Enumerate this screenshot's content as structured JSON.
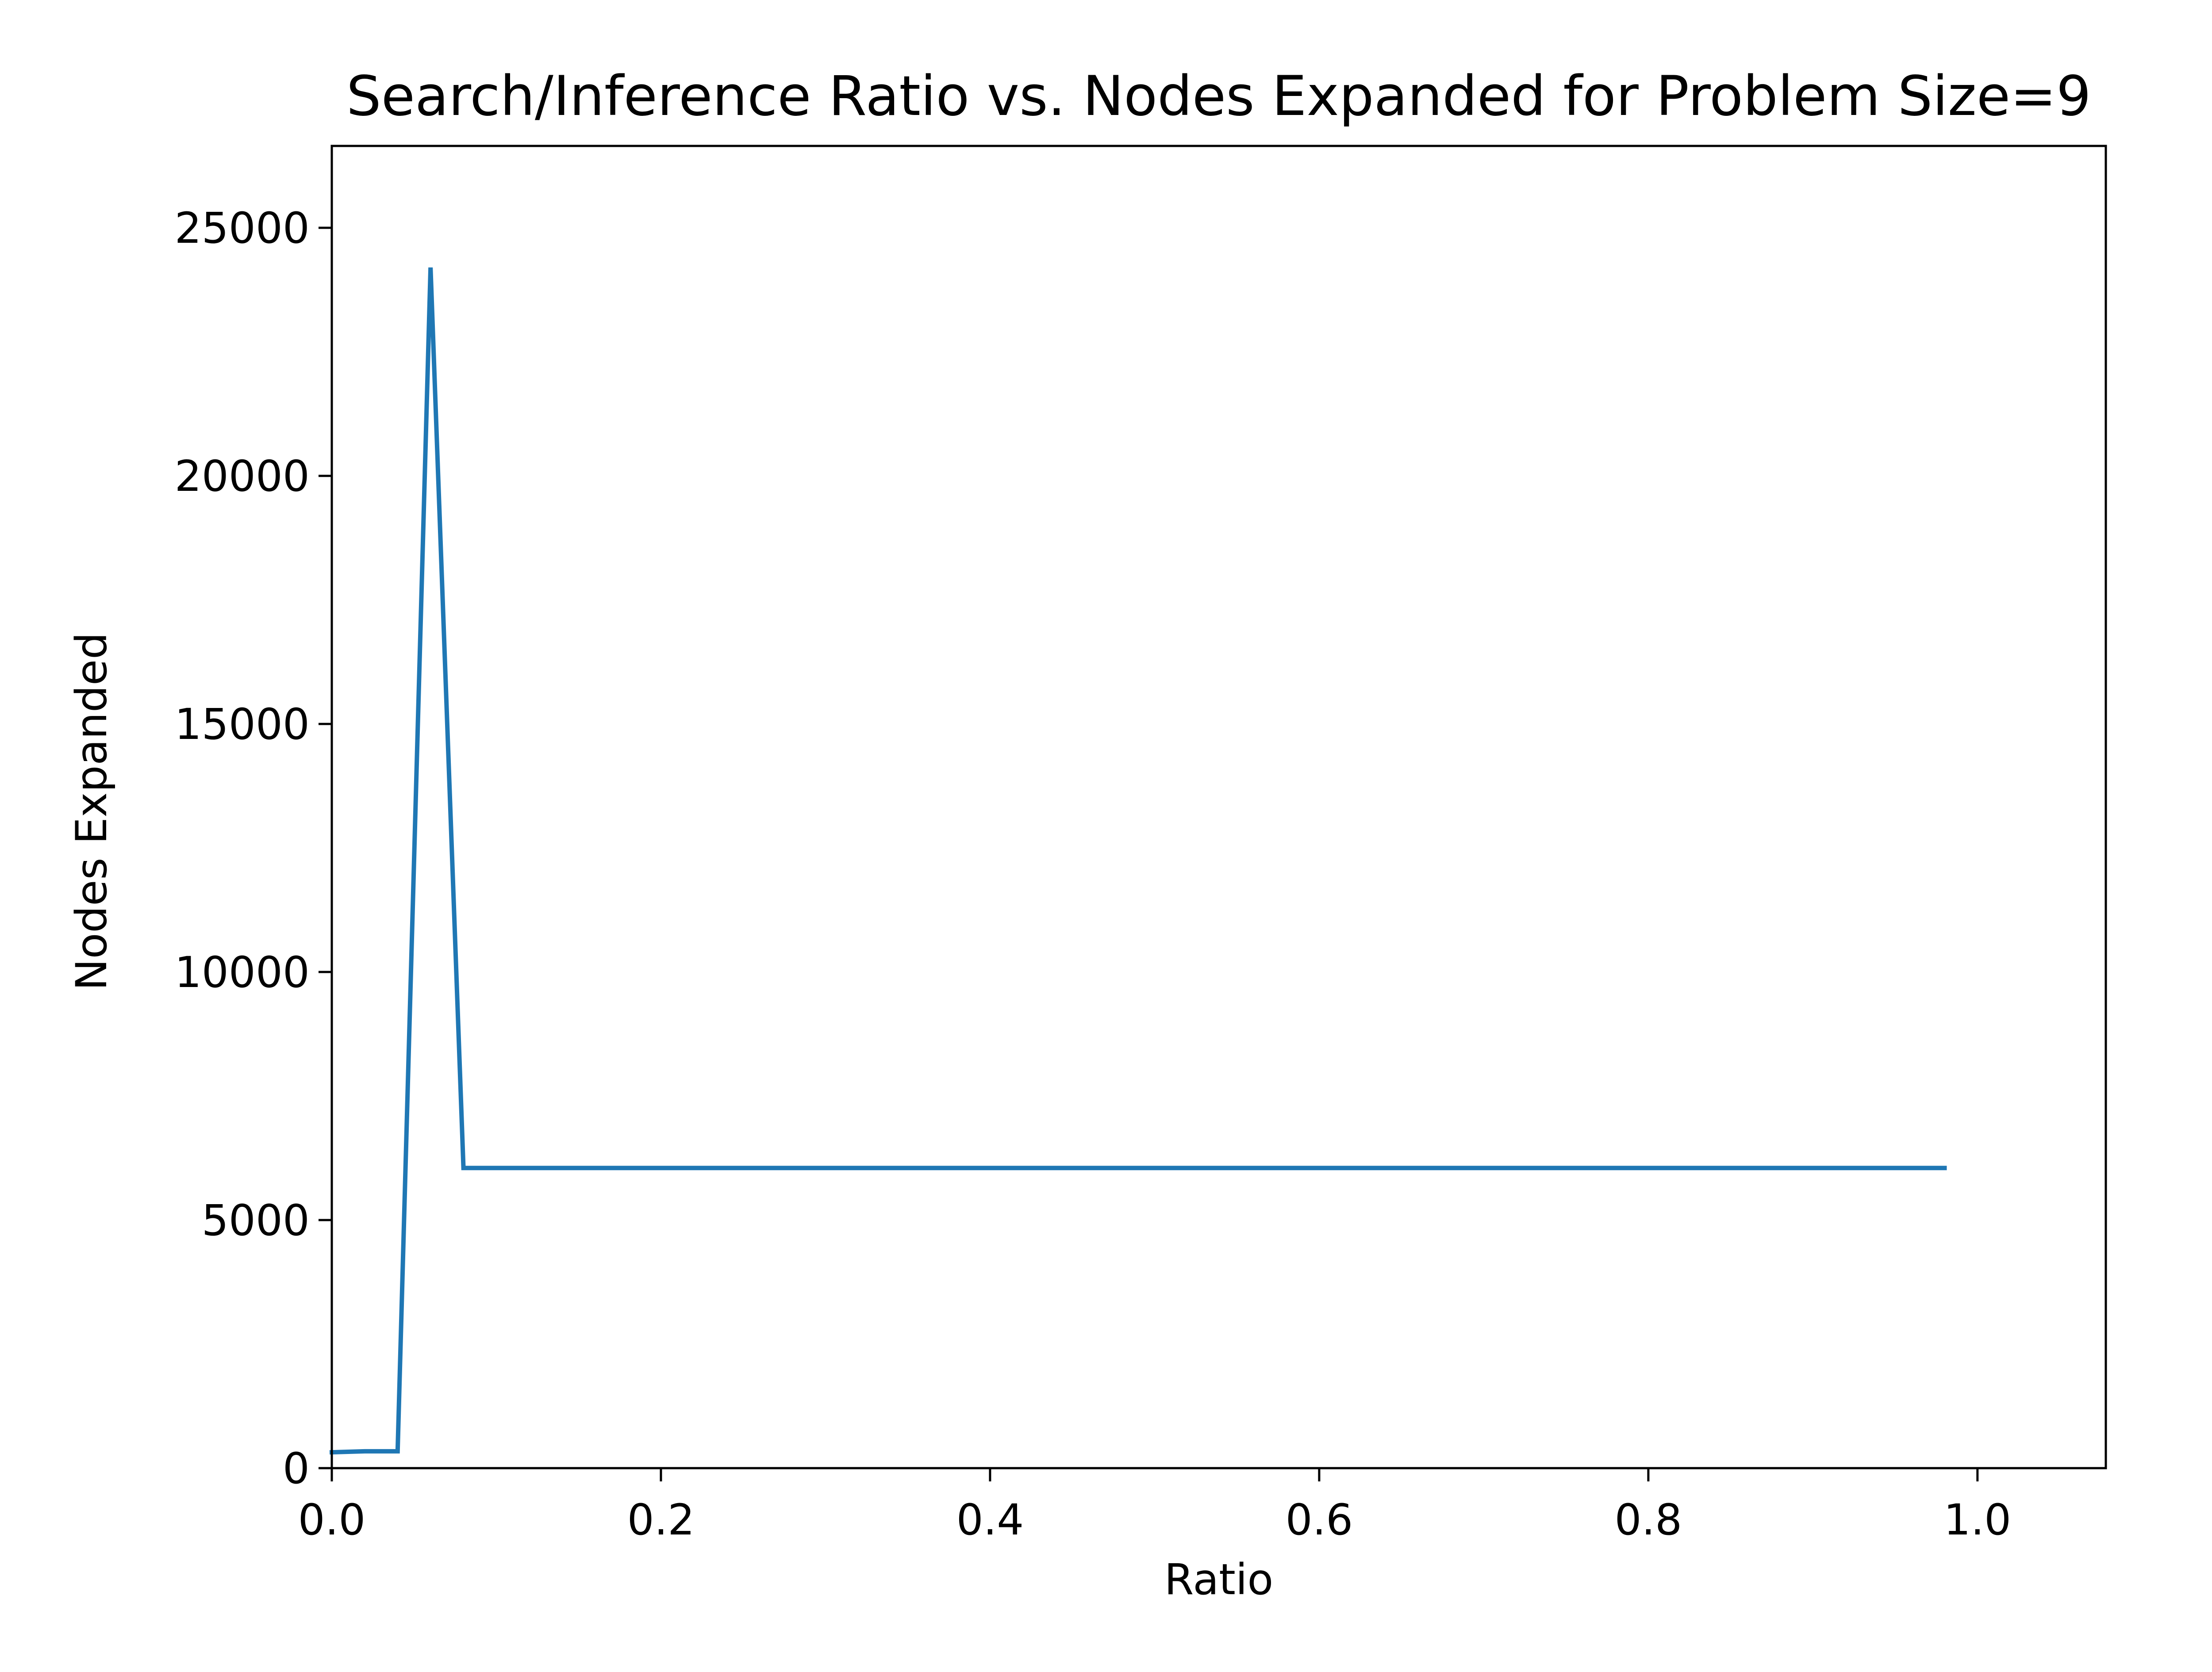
{
  "chart_data": {
    "type": "line",
    "title": "Search/Inference Ratio vs. Nodes Expanded for Problem Size=9",
    "xlabel": "Ratio",
    "ylabel": "Nodes Expanded",
    "xlim": [
      0.0,
      1.078
    ],
    "ylim": [
      0,
      26650
    ],
    "xticks": [
      0.0,
      0.2,
      0.4,
      0.6,
      0.8,
      1.0
    ],
    "xtick_labels": [
      "0.0",
      "0.2",
      "0.4",
      "0.6",
      "0.8",
      "1.0"
    ],
    "yticks": [
      0,
      5000,
      10000,
      15000,
      20000,
      25000
    ],
    "ytick_labels": [
      "0",
      "5000",
      "10000",
      "15000",
      "20000",
      "25000"
    ],
    "grid": false,
    "series": [
      {
        "color": "#1f77b4",
        "x": [
          0.0,
          0.02,
          0.04,
          0.06,
          0.08,
          0.1,
          0.2,
          0.3,
          0.4,
          0.5,
          0.6,
          0.7,
          0.8,
          0.9,
          0.98
        ],
        "y": [
          320,
          340,
          340,
          24200,
          6050,
          6050,
          6050,
          6050,
          6050,
          6050,
          6050,
          6050,
          6050,
          6050,
          6050
        ]
      }
    ]
  }
}
